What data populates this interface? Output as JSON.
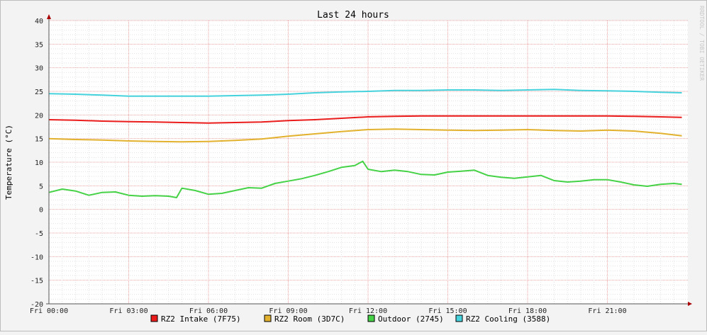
{
  "chart_data": {
    "type": "line",
    "title": "Last 24 hours",
    "ylabel": "Temperature (°C)",
    "xlabel": "",
    "watermark": "RRDTOOL / TOBI OETIKER",
    "ylim": [
      -20,
      40
    ],
    "y_ticks": [
      "40",
      "35",
      "30",
      "25",
      "20",
      "15",
      "10",
      "5",
      "0",
      "-5",
      "-10",
      "-15",
      "-20"
    ],
    "x_range_hours": [
      0,
      23.8
    ],
    "x_ticks": [
      {
        "hour": 0,
        "label": "Fri 00:00"
      },
      {
        "hour": 3,
        "label": "Fri 03:00"
      },
      {
        "hour": 6,
        "label": "Fri 06:00"
      },
      {
        "hour": 9,
        "label": "Fri 09:00"
      },
      {
        "hour": 12,
        "label": "Fri 12:00"
      },
      {
        "hour": 15,
        "label": "Fri 15:00"
      },
      {
        "hour": 18,
        "label": "Fri 18:00"
      },
      {
        "hour": 21,
        "label": "Fri 21:00"
      }
    ],
    "grid": true,
    "legend_position": "bottom",
    "series": [
      {
        "name": "RZ2 Intake (7F75)",
        "color": "#ea1c1c",
        "x": [
          0,
          1,
          2,
          3,
          4,
          5,
          6,
          7,
          8,
          9,
          10,
          11,
          12,
          13,
          14,
          15,
          16,
          17,
          18,
          19,
          20,
          21,
          22,
          23,
          23.8
        ],
        "y": [
          19.0,
          18.9,
          18.7,
          18.6,
          18.5,
          18.4,
          18.3,
          18.4,
          18.5,
          18.8,
          19.0,
          19.3,
          19.6,
          19.7,
          19.8,
          19.8,
          19.8,
          19.8,
          19.8,
          19.8,
          19.8,
          19.8,
          19.7,
          19.6,
          19.5
        ]
      },
      {
        "name": "RZ2 Room (3D7C)",
        "color": "#e2b12d",
        "x": [
          0,
          1,
          2,
          3,
          4,
          5,
          6,
          7,
          8,
          9,
          10,
          11,
          12,
          13,
          14,
          15,
          16,
          17,
          18,
          19,
          20,
          21,
          22,
          23,
          23.8
        ],
        "y": [
          15.0,
          14.8,
          14.7,
          14.5,
          14.4,
          14.3,
          14.4,
          14.6,
          14.9,
          15.5,
          16.0,
          16.5,
          16.9,
          17.0,
          16.9,
          16.8,
          16.7,
          16.8,
          16.9,
          16.7,
          16.6,
          16.8,
          16.6,
          16.1,
          15.6
        ]
      },
      {
        "name": "Outdoor (2745)",
        "color": "#46d246",
        "x": [
          0,
          0.5,
          1,
          1.5,
          2,
          2.5,
          3,
          3.5,
          4,
          4.5,
          4.8,
          5,
          5.5,
          6,
          6.5,
          7,
          7.5,
          8,
          8.5,
          9,
          9.5,
          10,
          10.5,
          11,
          11.5,
          11.8,
          12,
          12.5,
          13,
          13.5,
          14,
          14.5,
          15,
          15.5,
          16,
          16.5,
          17,
          17.5,
          18,
          18.5,
          19,
          19.5,
          20,
          20.5,
          21,
          21.5,
          22,
          22.5,
          23,
          23.5,
          23.8
        ],
        "y": [
          3.6,
          4.3,
          3.9,
          3.0,
          3.6,
          3.7,
          3.0,
          2.8,
          2.9,
          2.8,
          2.5,
          4.5,
          4.0,
          3.2,
          3.4,
          4.0,
          4.6,
          4.5,
          5.5,
          6.0,
          6.5,
          7.2,
          8.0,
          8.9,
          9.3,
          10.2,
          8.5,
          8.0,
          8.3,
          8.0,
          7.4,
          7.3,
          7.9,
          8.1,
          8.3,
          7.2,
          6.8,
          6.6,
          6.9,
          7.2,
          6.1,
          5.8,
          6.0,
          6.3,
          6.3,
          5.8,
          5.2,
          4.9,
          5.3,
          5.5,
          5.3
        ]
      },
      {
        "name": "RZ2 Cooling (3588)",
        "color": "#46d2dc",
        "x": [
          0,
          1,
          2,
          3,
          4,
          5,
          6,
          7,
          8,
          9,
          10,
          11,
          12,
          13,
          14,
          15,
          16,
          17,
          18,
          19,
          20,
          21,
          22,
          23,
          23.8
        ],
        "y": [
          24.5,
          24.4,
          24.2,
          24.0,
          24.0,
          24.0,
          24.0,
          24.1,
          24.2,
          24.4,
          24.7,
          24.9,
          25.0,
          25.2,
          25.2,
          25.3,
          25.3,
          25.2,
          25.3,
          25.4,
          25.2,
          25.1,
          25.0,
          24.8,
          24.7
        ]
      }
    ]
  }
}
